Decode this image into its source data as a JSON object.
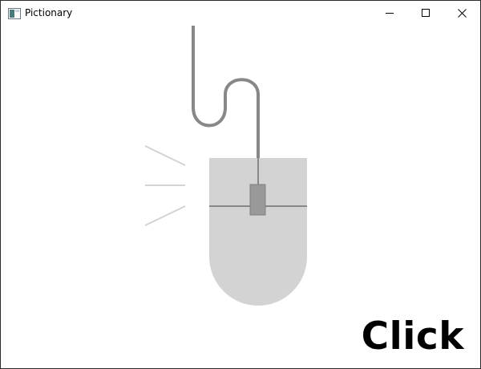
{
  "window": {
    "title": "Pictionary",
    "icon": "app-window-icon",
    "controls": [
      "minimize-icon",
      "maximize-icon",
      "close-icon"
    ]
  },
  "illustration": {
    "subject": "mouse-icon",
    "colors": {
      "body": "#d3d3d3",
      "cord": "#888888",
      "wheel": "#999999",
      "click_lines": "#d3d3d3"
    }
  },
  "word": "Click"
}
